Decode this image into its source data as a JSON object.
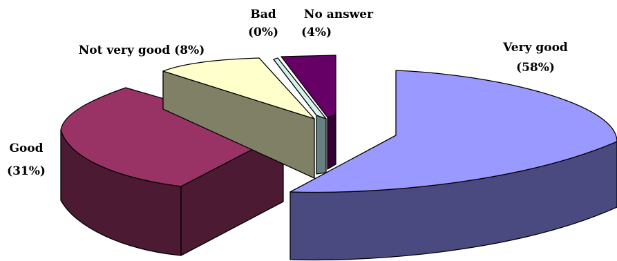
{
  "chart_data": {
    "type": "pie",
    "style": "3d-exploded",
    "slices": [
      {
        "label": "Very good",
        "value": 58,
        "display": "(58%)",
        "top_color": "#9999ff",
        "side_color": "#4a4a80"
      },
      {
        "label": "Good",
        "value": 31,
        "display": "(31%)",
        "top_color": "#993366",
        "side_color": "#4d1a33"
      },
      {
        "label": "Not very good (8%)",
        "value": 8,
        "display": "",
        "top_color": "#ffffcc",
        "side_color": "#808066"
      },
      {
        "label": "Bad",
        "value": 0,
        "display": "(0%)",
        "top_color": "#d6f0f0",
        "side_color": "#668080"
      },
      {
        "label": "No answer",
        "value": 4,
        "display": "(4%)",
        "top_color": "#660066",
        "side_color": "#330033"
      }
    ]
  }
}
